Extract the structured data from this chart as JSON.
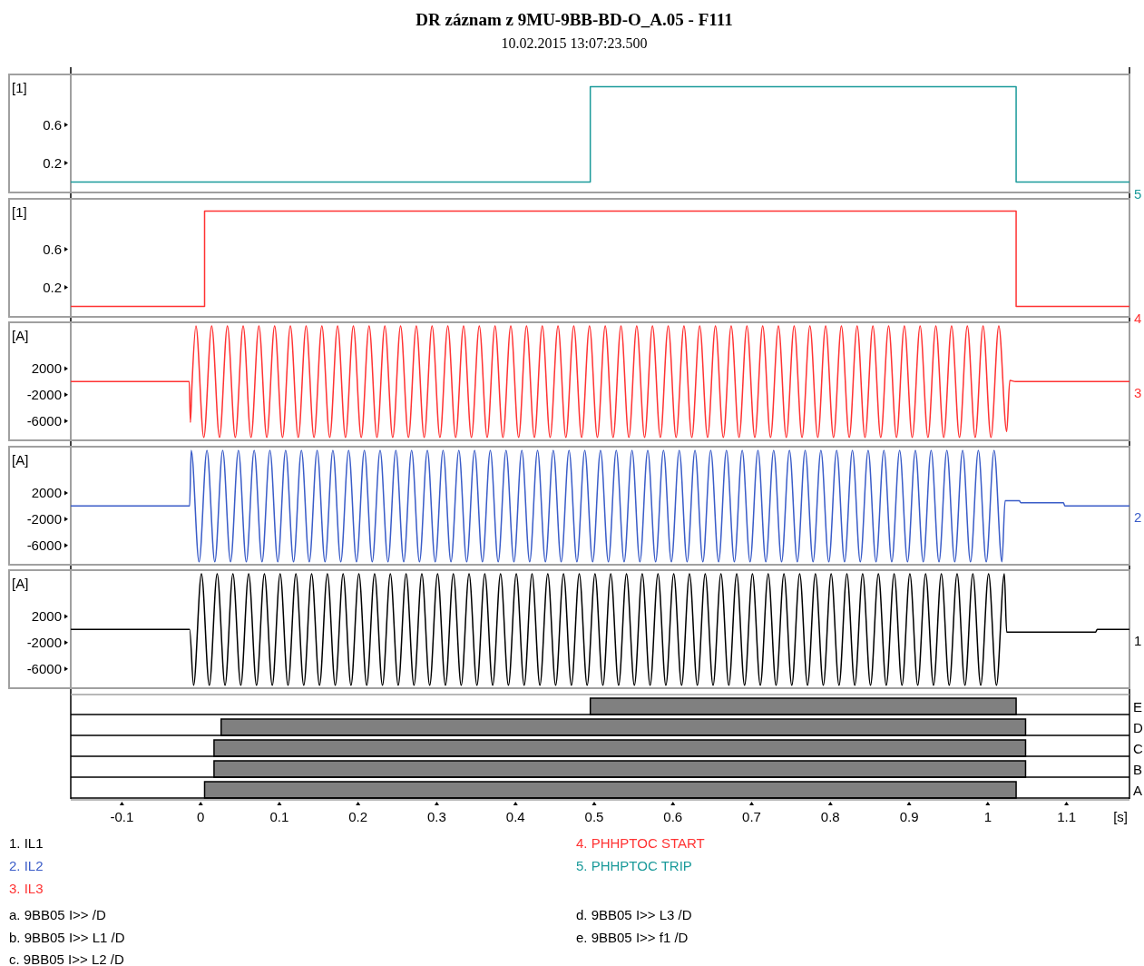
{
  "chart_data": [
    {
      "type": "step",
      "title": "DR záznam z 9MU-9BB-BD-O_A.05 - F111",
      "subtitle": "10.02.2015 13:07:23.500",
      "ylabel": "[1]",
      "xlim": [
        -0.165,
        1.18
      ],
      "ylim": [
        -0.1,
        1.12
      ],
      "yticks": [
        0.2,
        0.6
      ],
      "tick_labels": "y",
      "legend": "bottom",
      "annotations": [
        "5"
      ],
      "series": [
        {
          "name": "5. PHHPTOC TRIP",
          "color": "#1a9a9a",
          "x": [
            -0.165,
            0.495,
            1.036,
            1.18
          ],
          "values": [
            0,
            1,
            0,
            0
          ]
        }
      ]
    },
    {
      "type": "step",
      "ylabel": "[1]",
      "xlim": [
        -0.165,
        1.18
      ],
      "ylim": [
        -0.1,
        1.12
      ],
      "yticks": [
        0.2,
        0.6
      ],
      "tick_labels": "y",
      "legend": "bottom",
      "annotations": [
        "4"
      ],
      "series": [
        {
          "name": "4. PHHPTOC START",
          "color": "#ff3333",
          "x": [
            -0.165,
            0.005,
            1.036,
            1.18
          ],
          "values": [
            0,
            1,
            0,
            0
          ]
        }
      ]
    },
    {
      "type": "line",
      "ylabel": "[A]",
      "xlim": [
        -0.165,
        1.18
      ],
      "ylim": [
        -8800,
        8900
      ],
      "yticks": [
        -6000,
        -2000,
        2000
      ],
      "tick_labels": "y",
      "legend": "bottom",
      "annotations": [
        "3"
      ],
      "series": [
        {
          "name": "3. IL3",
          "color": "#ff3333",
          "x": [
            -0.165,
            -0.0145,
            -0.013,
            -0.011,
            -0.006,
            0.004,
            0.014,
            0.024,
            0.034,
            0.044,
            0.054,
            0.064,
            0.074,
            0.084,
            0.094,
            0.104,
            0.114,
            0.124,
            0.134,
            0.144,
            0.154,
            0.164,
            0.174,
            0.184,
            0.194,
            0.204,
            0.214,
            0.224,
            0.234,
            0.244,
            0.254,
            0.264,
            0.274,
            0.284,
            0.294,
            0.304,
            0.314,
            0.324,
            0.334,
            0.344,
            0.354,
            0.364,
            0.374,
            0.384,
            0.394,
            0.404,
            0.414,
            0.424,
            0.434,
            0.444,
            0.454,
            0.464,
            0.474,
            0.484,
            0.494,
            0.504,
            0.514,
            0.524,
            0.534,
            0.544,
            0.554,
            0.564,
            0.574,
            0.584,
            0.594,
            0.604,
            0.614,
            0.624,
            0.634,
            0.644,
            0.654,
            0.664,
            0.674,
            0.684,
            0.694,
            0.704,
            0.714,
            0.724,
            0.734,
            0.744,
            0.754,
            0.764,
            0.774,
            0.784,
            0.794,
            0.804,
            0.814,
            0.824,
            0.834,
            0.844,
            0.854,
            0.864,
            0.874,
            0.884,
            0.894,
            0.904,
            0.914,
            0.924,
            0.934,
            0.944,
            0.954,
            0.964,
            0.974,
            0.984,
            0.994,
            1.004,
            1.014,
            1.024,
            1.028,
            1.035,
            1.18
          ],
          "values": [
            0,
            0,
            -6200,
            -500,
            8500,
            -8500,
            8500,
            -8500,
            8500,
            -8500,
            8500,
            -8500,
            8500,
            -8500,
            8500,
            -8500,
            8500,
            -8500,
            8500,
            -8500,
            8500,
            -8500,
            8500,
            -8500,
            8500,
            -8500,
            8500,
            -8500,
            8500,
            -8500,
            8500,
            -8500,
            8500,
            -8500,
            8500,
            -8500,
            8500,
            -8500,
            8500,
            -8500,
            8500,
            -8500,
            8500,
            -8500,
            8500,
            -8500,
            8500,
            -8500,
            8500,
            -8500,
            8500,
            -8500,
            8500,
            -8500,
            8500,
            -8500,
            8500,
            -8500,
            8500,
            -8500,
            8500,
            -8500,
            8500,
            -8500,
            8500,
            -8500,
            8500,
            -8500,
            8500,
            -8500,
            8500,
            -8500,
            8500,
            -8500,
            8500,
            -8500,
            8500,
            -8500,
            8500,
            -8500,
            8500,
            -8500,
            8500,
            -8500,
            8500,
            -8500,
            8500,
            -8500,
            8500,
            -8500,
            8500,
            -8500,
            8500,
            -8500,
            8500,
            -8500,
            8500,
            -8500,
            8500,
            -8500,
            8500,
            -8500,
            8500,
            -8500,
            8500,
            -8500,
            8500,
            -7600,
            200,
            0,
            0
          ]
        }
      ]
    },
    {
      "type": "line",
      "ylabel": "[A]",
      "xlim": [
        -0.165,
        1.18
      ],
      "ylim": [
        -8800,
        8900
      ],
      "yticks": [
        -6000,
        -2000,
        2000
      ],
      "tick_labels": "y",
      "legend": "bottom",
      "annotations": [
        "2"
      ],
      "series": [
        {
          "name": "2. IL2",
          "color": "#3a5cc8",
          "x": [
            -0.165,
            -0.014,
            -0.012,
            -0.002,
            0.008,
            0.018,
            0.028,
            0.038,
            0.048,
            0.058,
            0.068,
            0.078,
            0.088,
            0.098,
            0.108,
            0.118,
            0.128,
            0.138,
            0.148,
            0.158,
            0.168,
            0.178,
            0.188,
            0.198,
            0.208,
            0.218,
            0.228,
            0.238,
            0.248,
            0.258,
            0.268,
            0.278,
            0.288,
            0.298,
            0.308,
            0.318,
            0.328,
            0.338,
            0.348,
            0.358,
            0.368,
            0.378,
            0.388,
            0.398,
            0.408,
            0.418,
            0.428,
            0.438,
            0.448,
            0.458,
            0.468,
            0.478,
            0.488,
            0.498,
            0.508,
            0.518,
            0.528,
            0.538,
            0.548,
            0.558,
            0.568,
            0.578,
            0.588,
            0.598,
            0.608,
            0.618,
            0.628,
            0.638,
            0.648,
            0.658,
            0.668,
            0.678,
            0.688,
            0.698,
            0.708,
            0.718,
            0.728,
            0.738,
            0.748,
            0.758,
            0.768,
            0.778,
            0.788,
            0.798,
            0.808,
            0.818,
            0.828,
            0.838,
            0.848,
            0.858,
            0.868,
            0.878,
            0.888,
            0.898,
            0.908,
            0.918,
            0.928,
            0.938,
            0.948,
            0.958,
            0.968,
            0.978,
            0.988,
            0.998,
            1.008,
            1.018,
            1.022,
            1.04,
            1.042,
            1.096,
            1.098,
            1.18
          ],
          "values": [
            0,
            0,
            8500,
            -8500,
            8500,
            -8500,
            8500,
            -8500,
            8500,
            -8500,
            8500,
            -8500,
            8500,
            -8500,
            8500,
            -8500,
            8500,
            -8500,
            8500,
            -8500,
            8500,
            -8500,
            8500,
            -8500,
            8500,
            -8500,
            8500,
            -8500,
            8500,
            -8500,
            8500,
            -8500,
            8500,
            -8500,
            8500,
            -8500,
            8500,
            -8500,
            8500,
            -8500,
            8500,
            -8500,
            8500,
            -8500,
            8500,
            -8500,
            8500,
            -8500,
            8500,
            -8500,
            8500,
            -8500,
            8500,
            -8500,
            8500,
            -8500,
            8500,
            -8500,
            8500,
            -8500,
            8500,
            -8500,
            8500,
            -8500,
            8500,
            -8500,
            8500,
            -8500,
            8500,
            -8500,
            8500,
            -8500,
            8500,
            -8500,
            8500,
            -8500,
            8500,
            -8500,
            8500,
            -8500,
            8500,
            -8500,
            8500,
            -8500,
            8500,
            -8500,
            8500,
            -8500,
            8500,
            -8500,
            8500,
            -8500,
            8500,
            -8500,
            8500,
            -8500,
            8500,
            -8500,
            8500,
            -8500,
            8500,
            -8500,
            8500,
            -8500,
            8500,
            -8500,
            800,
            800,
            500,
            500,
            0,
            0
          ]
        }
      ]
    },
    {
      "type": "line",
      "ylabel": "[A]",
      "xlim": [
        -0.165,
        1.18
      ],
      "ylim": [
        -8800,
        8900
      ],
      "yticks": [
        -6000,
        -2000,
        2000
      ],
      "tick_labels": "y",
      "legend": "bottom",
      "annotations": [
        "1"
      ],
      "series": [
        {
          "name": "1. IL1",
          "color": "#000000",
          "x": [
            -0.165,
            -0.014,
            -0.009,
            0.001,
            0.011,
            0.021,
            0.031,
            0.041,
            0.051,
            0.061,
            0.071,
            0.081,
            0.091,
            0.101,
            0.111,
            0.121,
            0.131,
            0.141,
            0.151,
            0.161,
            0.171,
            0.181,
            0.191,
            0.201,
            0.211,
            0.221,
            0.231,
            0.241,
            0.251,
            0.261,
            0.271,
            0.281,
            0.291,
            0.301,
            0.311,
            0.321,
            0.331,
            0.341,
            0.351,
            0.361,
            0.371,
            0.381,
            0.391,
            0.401,
            0.411,
            0.421,
            0.431,
            0.441,
            0.451,
            0.461,
            0.471,
            0.481,
            0.491,
            0.501,
            0.511,
            0.521,
            0.531,
            0.541,
            0.551,
            0.561,
            0.571,
            0.581,
            0.591,
            0.601,
            0.611,
            0.621,
            0.631,
            0.641,
            0.651,
            0.661,
            0.671,
            0.681,
            0.691,
            0.701,
            0.711,
            0.721,
            0.731,
            0.741,
            0.751,
            0.761,
            0.771,
            0.781,
            0.791,
            0.801,
            0.811,
            0.821,
            0.831,
            0.841,
            0.851,
            0.861,
            0.871,
            0.881,
            0.891,
            0.901,
            0.911,
            0.921,
            0.931,
            0.941,
            0.951,
            0.961,
            0.971,
            0.981,
            0.991,
            1.001,
            1.011,
            1.021,
            1.024,
            1.137,
            1.139,
            1.18
          ],
          "values": [
            0,
            0,
            -8500,
            8500,
            -8500,
            8500,
            -8500,
            8500,
            -8500,
            8500,
            -8500,
            8500,
            -8500,
            8500,
            -8500,
            8500,
            -8500,
            8500,
            -8500,
            8500,
            -8500,
            8500,
            -8500,
            8500,
            -8500,
            8500,
            -8500,
            8500,
            -8500,
            8500,
            -8500,
            8500,
            -8500,
            8500,
            -8500,
            8500,
            -8500,
            8500,
            -8500,
            8500,
            -8500,
            8500,
            -8500,
            8500,
            -8500,
            8500,
            -8500,
            8500,
            -8500,
            8500,
            -8500,
            8500,
            -8500,
            8500,
            -8500,
            8500,
            -8500,
            8500,
            -8500,
            8500,
            -8500,
            8500,
            -8500,
            8500,
            -8500,
            8500,
            -8500,
            8500,
            -8500,
            8500,
            -8500,
            8500,
            -8500,
            8500,
            -8500,
            8500,
            -8500,
            8500,
            -8500,
            8500,
            -8500,
            8500,
            -8500,
            8500,
            -8500,
            8500,
            -8500,
            8500,
            -8500,
            8500,
            -8500,
            8500,
            -8500,
            8500,
            -8500,
            8500,
            -8500,
            8500,
            -8500,
            8500,
            -8500,
            8500,
            -8500,
            8500,
            -8500,
            8500,
            -400,
            -400,
            0,
            0
          ]
        }
      ]
    },
    {
      "type": "bar",
      "orientation": "horizontal",
      "xlabel": "[s]",
      "xlim": [
        -0.165,
        1.18
      ],
      "xticks": [
        -0.1,
        0,
        0.1,
        0.2,
        0.3,
        0.4,
        0.5,
        0.6,
        0.7,
        0.8,
        0.9,
        1,
        1.1
      ],
      "categories": [
        "E",
        "D",
        "C",
        "B",
        "A"
      ],
      "base": [
        0.495,
        0.026,
        0.017,
        0.017,
        0.005
      ],
      "values": [
        0.541,
        1.022,
        1.031,
        1.031,
        1.031
      ],
      "color": "#808080",
      "annotations": [
        "a. 9BB05 I>> /D",
        "b. 9BB05 I>> L1 /D",
        "c. 9BB05 I>> L2 /D",
        "d. 9BB05 I>> L3 /D",
        "e. 9BB05 I>> f1 /D"
      ]
    }
  ]
}
